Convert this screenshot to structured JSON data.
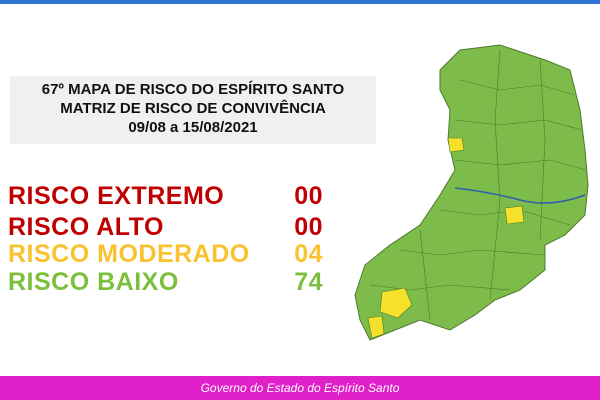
{
  "header": {
    "lines": [
      "67º MAPA DE RISCO DO ESPÍRITO SANTO",
      "MATRIZ DE RISCO DE CONVIVÊNCIA",
      "09/08 a 15/08/2021"
    ]
  },
  "risks": [
    {
      "label": "RISCO EXTREMO",
      "count": "00"
    },
    {
      "label": "RISCO ALTO",
      "count": "00"
    },
    {
      "label": "RISCO MODERADO",
      "count": "04"
    },
    {
      "label": "RISCO BAIXO",
      "count": "74"
    }
  ],
  "footer": "Governo do Estado do Espírito Santo"
}
